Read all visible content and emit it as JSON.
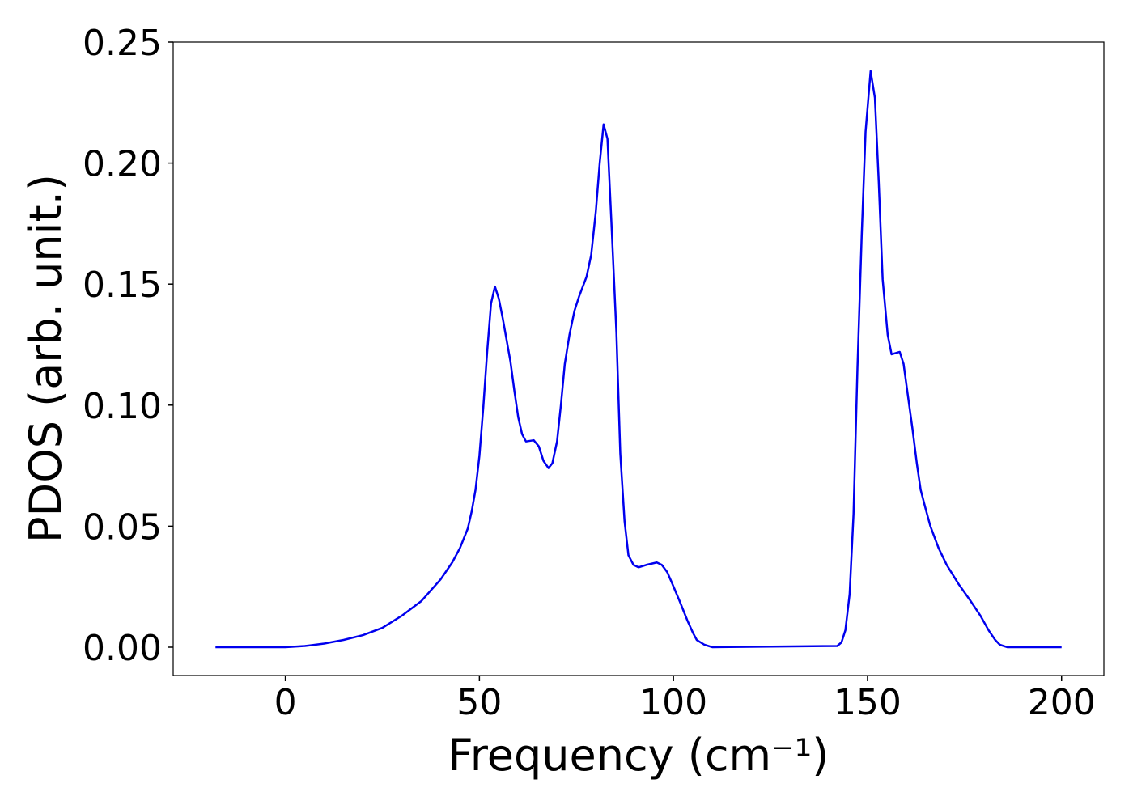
{
  "chart_data": {
    "type": "line",
    "xlabel": "Frequency (cm⁻¹)",
    "ylabel": "PDOS (arb. unit.)",
    "xlim": [
      -28.9,
      210.9
    ],
    "ylim": [
      -0.0117,
      0.25
    ],
    "xticks": [
      0,
      50,
      100,
      150,
      200
    ],
    "yticks": [
      {
        "value": 0,
        "label": "0.00"
      },
      {
        "value": 0.05,
        "label": "0.05"
      },
      {
        "value": 0.1,
        "label": "0.10"
      },
      {
        "value": 0.15,
        "label": "0.15"
      },
      {
        "value": 0.2,
        "label": "0.20"
      },
      {
        "value": 0.25,
        "label": "0.25"
      }
    ],
    "grid": false,
    "series": [
      {
        "name": "PDOS",
        "color": "#0000ee",
        "x": [
          -18,
          0,
          5,
          10,
          15,
          20,
          25,
          30,
          35,
          40,
          43,
          45,
          47,
          48,
          49,
          50,
          51,
          52,
          53,
          54,
          55,
          56,
          57,
          58,
          59,
          60,
          61,
          62,
          64,
          65.3,
          66.5,
          67.8,
          68.8,
          70,
          71,
          72,
          73.2,
          74.5,
          75.7,
          77.6,
          78.8,
          80,
          81,
          82,
          83,
          84,
          85.3,
          86.3,
          87.4,
          88.4,
          89.7,
          91,
          93,
          95.7,
          97,
          98.4,
          99.5,
          101.6,
          103.6,
          105,
          106,
          108,
          110,
          142.2,
          143.3,
          144.3,
          145.4,
          146.4,
          147.4,
          148.5,
          149.5,
          150.8,
          151.9,
          152.9,
          153.9,
          155.2,
          156.2,
          158.3,
          159.3,
          160.4,
          161.6,
          162.7,
          163.7,
          165,
          166.2,
          168.3,
          170.4,
          173.5,
          176.6,
          179.1,
          181.2,
          182.9,
          184.1,
          186,
          200
        ],
        "values": [
          0,
          0,
          0.0005,
          0.0015,
          0.003,
          0.005,
          0.008,
          0.013,
          0.019,
          0.028,
          0.035,
          0.041,
          0.049,
          0.056,
          0.065,
          0.079,
          0.099,
          0.122,
          0.142,
          0.149,
          0.144,
          0.136,
          0.127,
          0.118,
          0.106,
          0.095,
          0.088,
          0.085,
          0.0855,
          0.083,
          0.077,
          0.074,
          0.076,
          0.085,
          0.1,
          0.117,
          0.129,
          0.139,
          0.145,
          0.153,
          0.162,
          0.18,
          0.2,
          0.216,
          0.21,
          0.176,
          0.13,
          0.08,
          0.052,
          0.038,
          0.034,
          0.033,
          0.034,
          0.035,
          0.034,
          0.031,
          0.027,
          0.019,
          0.011,
          0.006,
          0.003,
          0.001,
          0,
          0.0005,
          0.002,
          0.007,
          0.022,
          0.055,
          0.115,
          0.17,
          0.213,
          0.238,
          0.227,
          0.192,
          0.152,
          0.129,
          0.121,
          0.122,
          0.117,
          0.104,
          0.09,
          0.076,
          0.065,
          0.057,
          0.05,
          0.041,
          0.034,
          0.026,
          0.019,
          0.013,
          0.007,
          0.003,
          0.001,
          0,
          0
        ]
      }
    ]
  }
}
